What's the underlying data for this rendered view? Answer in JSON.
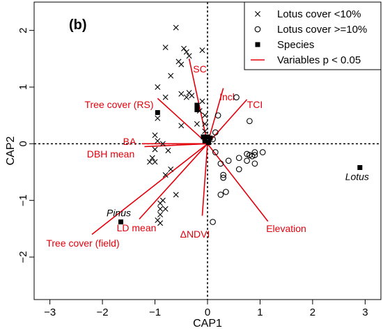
{
  "chart_data": {
    "type": "scatter",
    "panel_label": "(b)",
    "xlabel": "CAP1",
    "ylabel": "CAP2",
    "xlim": [
      -3.3,
      3.3
    ],
    "ylim": [
      -2.75,
      2.5
    ],
    "x_ticks": [
      -3,
      -2,
      -1,
      0,
      1,
      2,
      3
    ],
    "x_tick_labels": [
      "−3",
      "−2",
      "−1",
      "0",
      "1",
      "2",
      "3"
    ],
    "y_ticks": [
      -2,
      -1,
      0,
      1,
      2
    ],
    "y_tick_labels": [
      "−2",
      "−1",
      "0",
      "1",
      "2"
    ],
    "reference_lines": [
      {
        "axis": "x",
        "value": 0
      },
      {
        "axis": "y",
        "value": 0
      }
    ],
    "colors": {
      "variables": "#e3000b",
      "points": "#000000"
    },
    "legend": {
      "position": "top-right",
      "entries": [
        {
          "symbol": "x-mark",
          "label": "Lotus cover <10%"
        },
        {
          "symbol": "open-circle",
          "label": "Lotus cover >=10%"
        },
        {
          "symbol": "filled-square",
          "label": "Species"
        },
        {
          "symbol": "red-line",
          "label": "Variables p < 0.05"
        }
      ]
    },
    "series": [
      {
        "name": "Lotus cover <10%",
        "marker": "x",
        "points": [
          [
            -0.6,
            2.05
          ],
          [
            -0.45,
            1.68
          ],
          [
            -0.4,
            1.62
          ],
          [
            -0.35,
            1.55
          ],
          [
            -0.8,
            1.7
          ],
          [
            -0.55,
            1.45
          ],
          [
            -0.1,
            1.65
          ],
          [
            -0.5,
            1.4
          ],
          [
            -0.7,
            1.2
          ],
          [
            -0.95,
            1.0
          ],
          [
            -0.5,
            0.88
          ],
          [
            -0.4,
            0.82
          ],
          [
            -0.8,
            0.82
          ],
          [
            -0.35,
            0.9
          ],
          [
            -0.3,
            0.85
          ],
          [
            -0.1,
            0.75
          ],
          [
            -0.15,
            0.58
          ],
          [
            -0.05,
            0.5
          ],
          [
            -0.95,
            0.45
          ],
          [
            -0.05,
            0.35
          ],
          [
            -0.2,
            0.35
          ],
          [
            -0.5,
            0.32
          ],
          [
            -0.05,
            0.22
          ],
          [
            -1.0,
            0.15
          ],
          [
            -0.05,
            0.1
          ],
          [
            -0.95,
            0.05
          ],
          [
            -0.85,
            0.0
          ],
          [
            -1.0,
            -0.1
          ],
          [
            -0.75,
            -0.12
          ],
          [
            -1.0,
            -0.32
          ],
          [
            -1.1,
            -0.32
          ],
          [
            -0.7,
            -0.45
          ],
          [
            -0.8,
            -0.55
          ],
          [
            -0.6,
            -0.9
          ],
          [
            -0.85,
            -1.0
          ],
          [
            -0.9,
            -1.05
          ],
          [
            -0.8,
            -1.15
          ],
          [
            -0.9,
            -1.15
          ],
          [
            -0.95,
            -1.35
          ],
          [
            -0.9,
            -1.4
          ],
          [
            -0.9,
            -1.25
          ],
          [
            -1.05,
            -0.25
          ]
        ]
      },
      {
        "name": "Lotus cover >=10%",
        "marker": "open-circle",
        "points": [
          [
            0.55,
            0.82
          ],
          [
            0.8,
            0.4
          ],
          [
            0.2,
            0.5
          ],
          [
            0.15,
            0.2
          ],
          [
            0.1,
            0.08
          ],
          [
            0.15,
            -0.15
          ],
          [
            0.25,
            -0.35
          ],
          [
            0.4,
            -0.3
          ],
          [
            0.6,
            -0.25
          ],
          [
            0.6,
            -0.45
          ],
          [
            0.3,
            -0.55
          ],
          [
            0.3,
            -0.6
          ],
          [
            0.25,
            -0.9
          ],
          [
            0.35,
            -0.85
          ],
          [
            0.1,
            -1.38
          ],
          [
            0.75,
            -0.18
          ],
          [
            0.8,
            -0.2
          ],
          [
            0.85,
            -0.22
          ],
          [
            0.9,
            -0.2
          ],
          [
            1.05,
            -0.15
          ],
          [
            0.75,
            -0.3
          ],
          [
            0.9,
            -0.35
          ],
          [
            0.9,
            -0.15
          ]
        ]
      },
      {
        "name": "Species",
        "marker": "filled-square",
        "points": [
          {
            "x": 2.9,
            "y": -0.42,
            "label": "Lotus",
            "italic": true
          },
          {
            "x": -1.65,
            "y": -1.38,
            "label": "Pinus",
            "italic": true
          },
          {
            "x": -0.95,
            "y": 0.55
          },
          {
            "x": -0.2,
            "y": 0.68
          },
          {
            "x": -0.2,
            "y": 0.6
          },
          {
            "x": -0.08,
            "y": 0.12
          },
          {
            "x": 0.0,
            "y": 0.12
          },
          {
            "x": 0.05,
            "y": 0.1
          },
          {
            "x": -0.05,
            "y": 0.05
          },
          {
            "x": 0.02,
            "y": 0.02
          }
        ]
      }
    ],
    "variables": [
      {
        "name": "SC",
        "x": -0.35,
        "y": 1.5
      },
      {
        "name": "Incl",
        "x": 0.3,
        "y": 0.98
      },
      {
        "name": "TCI",
        "x": 0.75,
        "y": 0.78
      },
      {
        "name": "Tree cover (RS)",
        "x": -0.95,
        "y": 0.8
      },
      {
        "name": "BA",
        "x": -1.25,
        "y": 0.0
      },
      {
        "name": "DBH mean",
        "x": -1.2,
        "y": -0.05
      },
      {
        "name": "Tree cover (field)",
        "x": -2.2,
        "y": -1.6
      },
      {
        "name": "LD mean",
        "x": -1.3,
        "y": -1.33
      },
      {
        "name": "ΔNDVI",
        "x": -0.1,
        "y": -1.27
      },
      {
        "name": "Elevation",
        "x": 1.15,
        "y": -1.37
      }
    ]
  }
}
